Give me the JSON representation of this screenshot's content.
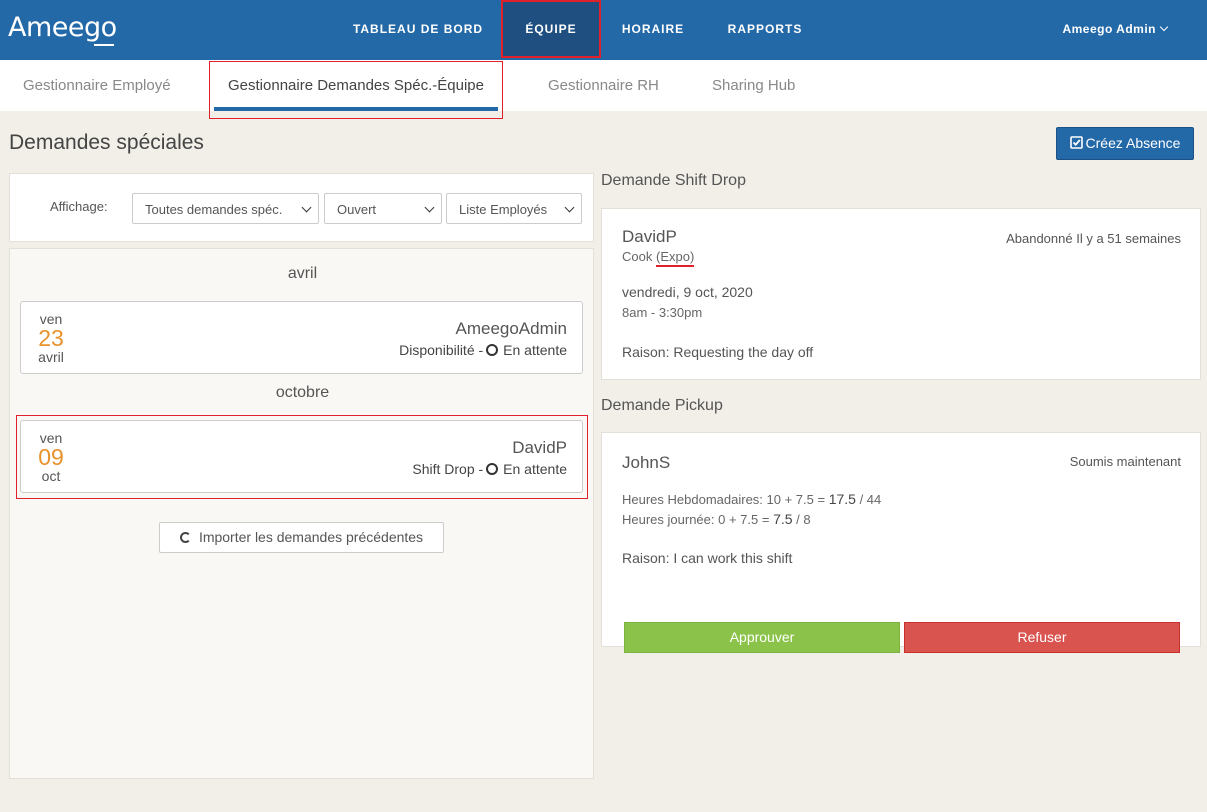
{
  "brand": {
    "logo_text": "Ameego"
  },
  "nav": {
    "items": [
      {
        "label": "TABLEAU DE BORD"
      },
      {
        "label": "ÉQUIPE"
      },
      {
        "label": "HORAIRE"
      },
      {
        "label": "RAPPORTS"
      }
    ],
    "user_label": "Ameego Admin"
  },
  "subnav": {
    "tabs": [
      {
        "label": "Gestionnaire Employé"
      },
      {
        "label": "Gestionnaire Demandes Spéc.-Équipe"
      },
      {
        "label": "Gestionnaire RH"
      },
      {
        "label": "Sharing Hub"
      }
    ]
  },
  "page": {
    "title": "Demandes spéciales",
    "create_absence_label": "Créez Absence"
  },
  "filters": {
    "label": "Affichage:",
    "type_value": "Toutes demandes spéc.",
    "status_value": "Ouvert",
    "employee_value": "Liste Employés"
  },
  "requests": {
    "groups": [
      {
        "month": "avril",
        "item": {
          "dow": "ven",
          "day": "23",
          "mon": "avril",
          "name": "AmeegoAdmin",
          "type": "Disponibilité -",
          "status": "En attente"
        }
      },
      {
        "month": "octobre",
        "item": {
          "dow": "ven",
          "day": "09",
          "mon": "oct",
          "name": "DavidP",
          "type": "Shift Drop -",
          "status": "En attente"
        }
      }
    ],
    "import_label": "Importer les demandes précédentes"
  },
  "shift_drop": {
    "section_title": "Demande Shift Drop",
    "name": "DavidP",
    "role": "Cook",
    "station": "(Expo)",
    "status": "Abandonné Il y a 51 semaines",
    "date": "vendredi, 9 oct, 2020",
    "time": "8am - 3:30pm",
    "reason": "Raison: Requesting the day off"
  },
  "pickup": {
    "section_title": "Demande Pickup",
    "name": "JohnS",
    "status": "Soumis maintenant",
    "weekly_label": "Heures Hebdomadaires: 10 + 7.5 =",
    "weekly_total": "17.5",
    "weekly_max": "/ 44",
    "daily_label": "Heures journée: 0 + 7.5 =",
    "daily_total": "7.5",
    "daily_max": "/ 8",
    "reason": "Raison: I can work this shift",
    "approve_label": "Approuver",
    "refuse_label": "Refuser"
  }
}
